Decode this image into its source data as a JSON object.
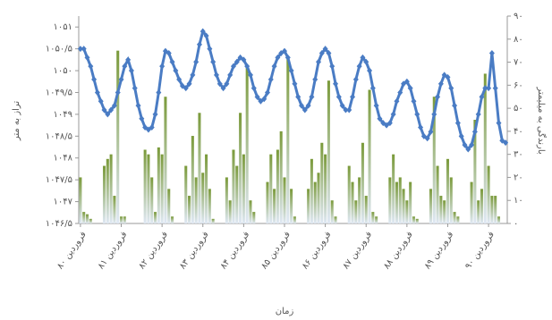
{
  "chart_data": {
    "type": "bar-line",
    "x_label": "زمان",
    "y_label": "تراز به متر",
    "y2_label": "بارندگی به میلیمتر",
    "categories": [
      "فروردین ۸۰",
      null,
      null,
      null,
      null,
      null,
      null,
      null,
      null,
      null,
      null,
      null,
      "فروردین ۸۱",
      null,
      null,
      null,
      null,
      null,
      null,
      null,
      null,
      null,
      null,
      null,
      "فروردین ۸۲",
      null,
      null,
      null,
      null,
      null,
      null,
      null,
      null,
      null,
      null,
      null,
      "فروردین ۸۳",
      null,
      null,
      null,
      null,
      null,
      null,
      null,
      null,
      null,
      null,
      null,
      "فروردین ۸۴",
      null,
      null,
      null,
      null,
      null,
      null,
      null,
      null,
      null,
      null,
      null,
      "فروردین ۸۵",
      null,
      null,
      null,
      null,
      null,
      null,
      null,
      null,
      null,
      null,
      null,
      "فروردین ۸۶",
      null,
      null,
      null,
      null,
      null,
      null,
      null,
      null,
      null,
      null,
      null,
      "فروردین ۸۷",
      null,
      null,
      null,
      null,
      null,
      null,
      null,
      null,
      null,
      null,
      null,
      "فروردین ۸۸",
      null,
      null,
      null,
      null,
      null,
      null,
      null,
      null,
      null,
      null,
      null,
      "فروردین ۸۹",
      null,
      null,
      null,
      null,
      null,
      null,
      null,
      null,
      null,
      null,
      null,
      "فروردین ۹۰",
      null,
      null,
      null,
      null,
      null
    ],
    "series": [
      {
        "kind": "bar",
        "axis": "y2",
        "color": "#7a9a3a",
        "values": [
          20,
          5,
          4,
          2,
          0,
          0,
          0,
          25,
          28,
          30,
          12,
          75,
          3,
          3,
          0,
          0,
          0,
          0,
          0,
          32,
          30,
          20,
          5,
          33,
          30,
          55,
          15,
          3,
          0,
          0,
          0,
          25,
          12,
          38,
          20,
          48,
          22,
          30,
          15,
          2,
          0,
          0,
          0,
          20,
          10,
          32,
          25,
          48,
          30,
          68,
          10,
          5,
          0,
          0,
          0,
          18,
          30,
          15,
          32,
          40,
          20,
          72,
          15,
          3,
          0,
          0,
          0,
          15,
          28,
          18,
          22,
          35,
          30,
          62,
          10,
          3,
          0,
          0,
          0,
          25,
          18,
          10,
          20,
          35,
          12,
          58,
          5,
          3,
          0,
          0,
          0,
          20,
          30,
          18,
          20,
          15,
          10,
          18,
          3,
          2,
          0,
          0,
          0,
          15,
          55,
          25,
          12,
          10,
          28,
          20,
          5,
          3,
          0,
          0,
          0,
          18,
          45,
          10,
          15,
          65,
          25,
          12,
          12,
          3,
          0,
          0
        ]
      },
      {
        "kind": "line",
        "axis": "y",
        "color": "#4a7cc4",
        "values": [
          1050.5,
          1050.5,
          1050.3,
          1050.1,
          1049.8,
          1049.5,
          1049.3,
          1049.1,
          1049.0,
          1049.1,
          1049.2,
          1049.5,
          1049.8,
          1050.1,
          1050.25,
          1050.0,
          1049.6,
          1049.2,
          1048.9,
          1048.7,
          1048.65,
          1048.7,
          1049.0,
          1049.5,
          1050.1,
          1050.45,
          1050.4,
          1050.2,
          1050.0,
          1049.8,
          1049.65,
          1049.6,
          1049.7,
          1049.9,
          1050.2,
          1050.6,
          1050.9,
          1050.8,
          1050.5,
          1050.2,
          1049.9,
          1049.7,
          1049.6,
          1049.7,
          1049.9,
          1050.1,
          1050.2,
          1050.3,
          1050.25,
          1050.1,
          1049.9,
          1049.6,
          1049.4,
          1049.3,
          1049.35,
          1049.5,
          1049.8,
          1050.1,
          1050.3,
          1050.4,
          1050.45,
          1050.3,
          1050.0,
          1049.7,
          1049.4,
          1049.2,
          1049.1,
          1049.2,
          1049.4,
          1049.8,
          1050.2,
          1050.4,
          1050.5,
          1050.4,
          1050.1,
          1049.7,
          1049.4,
          1049.2,
          1049.1,
          1049.1,
          1049.4,
          1049.8,
          1050.1,
          1050.3,
          1050.2,
          1050.0,
          1049.6,
          1049.2,
          1048.9,
          1048.8,
          1048.75,
          1048.8,
          1049.0,
          1049.3,
          1049.5,
          1049.7,
          1049.75,
          1049.6,
          1049.3,
          1049.0,
          1048.7,
          1048.5,
          1048.45,
          1048.6,
          1049.0,
          1049.4,
          1049.7,
          1049.9,
          1049.85,
          1049.6,
          1049.2,
          1048.8,
          1048.5,
          1048.3,
          1048.2,
          1048.3,
          1048.6,
          1049.0,
          1049.4,
          1049.6,
          1049.6,
          1050.4,
          1049.6,
          1048.8,
          1048.4,
          1048.35
        ]
      }
    ],
    "ylim": [
      1046.5,
      1051.25
    ],
    "yticks": [
      {
        "value": 1046.5,
        "label": "۱۰۴۶/۵"
      },
      {
        "value": 1047,
        "label": "۱۰۴۷"
      },
      {
        "value": 1047.5,
        "label": "۱۰۴۷/۵"
      },
      {
        "value": 1048,
        "label": "۱۰۴۸"
      },
      {
        "value": 1048.5,
        "label": "۱۰۴۸/۵"
      },
      {
        "value": 1049,
        "label": "۱۰۴۹"
      },
      {
        "value": 1049.5,
        "label": "۱۰۴۹/۵"
      },
      {
        "value": 1050,
        "label": "۱۰۵۰"
      },
      {
        "value": 1050.5,
        "label": "۱۰۵۰/۵"
      },
      {
        "value": 1051,
        "label": "۱۰۵۱"
      }
    ],
    "y2lim": [
      0,
      90
    ],
    "y2ticks": [
      {
        "value": 0,
        "label": "۰"
      },
      {
        "value": 10,
        "label": "۱۰"
      },
      {
        "value": 20,
        "label": "۲۰"
      },
      {
        "value": 30,
        "label": "۳۰"
      },
      {
        "value": 40,
        "label": "۴۰"
      },
      {
        "value": 50,
        "label": "۵۰"
      },
      {
        "value": 60,
        "label": "۶۰"
      },
      {
        "value": 70,
        "label": "۷۰"
      },
      {
        "value": 80,
        "label": "۸۰"
      },
      {
        "value": 90,
        "label": "۹۰"
      }
    ]
  }
}
